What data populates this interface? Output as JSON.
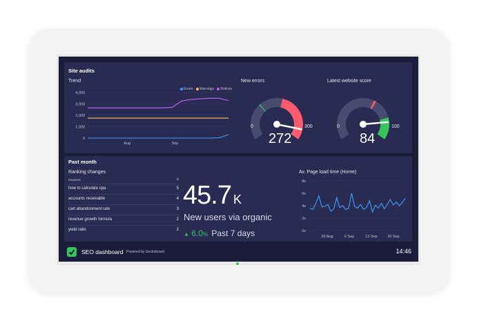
{
  "site_audits": {
    "title": "Site audits",
    "trend": {
      "title": "Trend",
      "legend": [
        {
          "name": "Errors",
          "color": "#3aa0ff"
        },
        {
          "name": "Warnings",
          "color": "#f5c451"
        },
        {
          "name": "Notices",
          "color": "#c064ff"
        }
      ],
      "y_ticks": [
        "4,000",
        "3,000",
        "2,000",
        "1,000",
        "0"
      ],
      "x_ticks": [
        "Aug",
        "Sep"
      ]
    },
    "new_errors": {
      "title": "New errors",
      "min": "0",
      "max": "300",
      "value": "272",
      "value_num": 272,
      "max_num": 300
    },
    "website_score": {
      "title": "Latest website score",
      "min": "0",
      "max": "100",
      "value": "84",
      "value_num": 84,
      "max_num": 100
    }
  },
  "past_month": {
    "title": "Past month",
    "ranking": {
      "title": "Ranking changes",
      "col_keyword": "Keyword",
      "col_change": "Δ",
      "rows": [
        {
          "keyword": "how to calculate cpa",
          "change": "5"
        },
        {
          "keyword": "accounts receivable",
          "change": "4"
        },
        {
          "keyword": "cart abandonment rate",
          "change": "3"
        },
        {
          "keyword": "revenue growth formula",
          "change": "2"
        },
        {
          "keyword": "yield ratio",
          "change": "2"
        }
      ]
    },
    "users": {
      "value": "45.7",
      "unit": "K",
      "label": "New users via organic",
      "change": "6.0",
      "change_unit": "%",
      "period": "Past 7 days"
    },
    "page_load": {
      "title": "Av. Page load time (Home)",
      "y_ticks": [
        "8s",
        "6s",
        "4s",
        "2s",
        "0s"
      ],
      "x_ticks": [
        "30 Aug",
        "6 Sep",
        "13 Sep",
        "20 Sep"
      ]
    }
  },
  "footer": {
    "title": "SEO dashboard",
    "powered_by": "Powered by Geckoboard",
    "time": "14:46"
  },
  "chart_data": [
    {
      "type": "line",
      "title": "Trend",
      "x_ticks": [
        "Aug",
        "Sep"
      ],
      "ylim": [
        0,
        4000
      ],
      "series": [
        {
          "name": "Notices",
          "values": [
            2650,
            2650,
            2650,
            2650,
            2650,
            2650,
            2650,
            2650,
            2650,
            2700,
            3250,
            3400,
            3450,
            3500,
            3500,
            3300
          ]
        },
        {
          "name": "Warnings",
          "values": [
            1750,
            1750,
            1750,
            1750,
            1750,
            1750,
            1750,
            1750,
            1750,
            1750,
            1750,
            1750,
            1750,
            1750,
            1750,
            1750
          ]
        },
        {
          "name": "Errors",
          "values": [
            0,
            0,
            0,
            0,
            0,
            0,
            0,
            0,
            0,
            0,
            0,
            0,
            0,
            0,
            30,
            300
          ]
        }
      ],
      "grid": true,
      "legend": "top-right"
    },
    {
      "type": "line",
      "title": "Av. Page load time (Home)",
      "x_ticks": [
        "30 Aug",
        "6 Sep",
        "13 Sep",
        "20 Sep"
      ],
      "ylim": [
        0,
        8
      ],
      "series": [
        {
          "values": [
            3.6,
            3.4,
            4.4,
            5.6,
            3.8,
            3.9,
            4.2,
            3.1,
            3.5,
            5.3,
            3.7,
            4.0,
            3.4,
            3.6,
            6.0,
            3.9,
            3.6,
            4.2,
            3.4,
            3.7,
            4.8,
            3.0,
            4.1,
            3.6,
            4.4,
            3.5,
            4.2,
            5.0,
            4.1,
            4.6,
            4.0,
            4.5,
            5.2
          ]
        }
      ],
      "grid": true
    }
  ]
}
